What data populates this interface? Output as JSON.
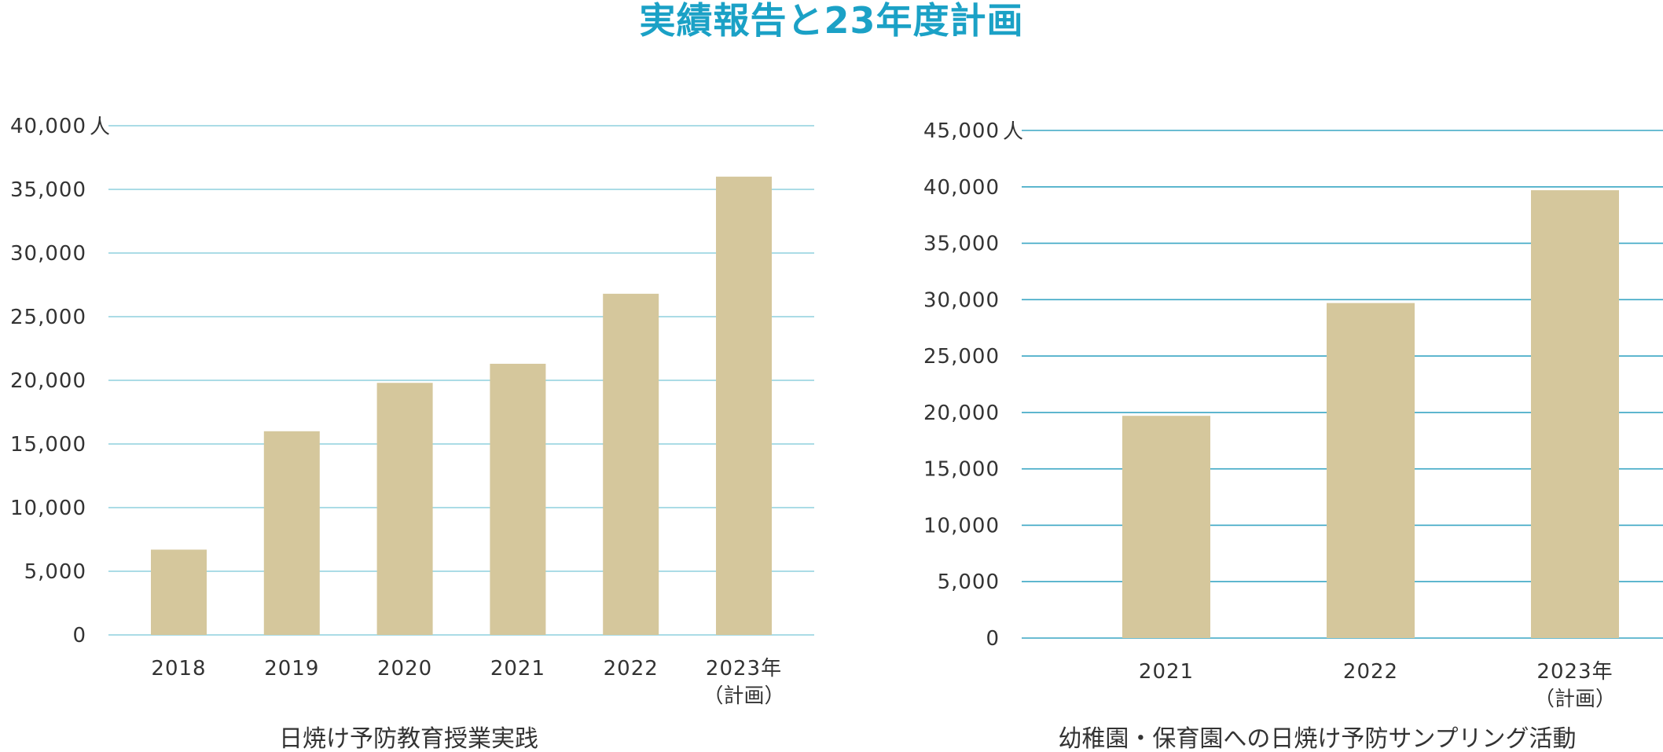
{
  "page": {
    "title": "実績報告と23年度計画",
    "title_color": "#1ba1c6"
  },
  "colors": {
    "bar": "#d5c79c",
    "left_gridline": "#8fd0dd",
    "right_gridline": "#3aa6c4",
    "text": "#333333"
  },
  "chart_data": [
    {
      "type": "bar",
      "title": "日焼け予防教育授業実践",
      "y_unit": "人",
      "categories": [
        "2018",
        "2019",
        "2020",
        "2021",
        "2022",
        "2023年"
      ],
      "category_sublabels": [
        "",
        "",
        "",
        "",
        "",
        "（計画）"
      ],
      "values": [
        6700,
        16000,
        19800,
        21300,
        26800,
        36000
      ],
      "yticks": [
        0,
        5000,
        10000,
        15000,
        20000,
        25000,
        30000,
        35000,
        40000
      ],
      "ytick_labels": [
        "0",
        "5,000",
        "10,000",
        "15,000",
        "20,000",
        "25,000",
        "30,000",
        "35,000",
        "40,000"
      ],
      "ylim": [
        0,
        40000
      ],
      "grid": true,
      "legend": "none"
    },
    {
      "type": "bar",
      "title": "幼稚園・保育園への日焼け予防サンプリング活動",
      "y_unit": "人",
      "categories": [
        "2021",
        "2022",
        "2023年"
      ],
      "category_sublabels": [
        "",
        "",
        "（計画）"
      ],
      "values": [
        19700,
        29700,
        39700
      ],
      "yticks": [
        0,
        5000,
        10000,
        15000,
        20000,
        25000,
        30000,
        35000,
        40000,
        45000
      ],
      "ytick_labels": [
        "0",
        "5,000",
        "10,000",
        "15,000",
        "20,000",
        "25,000",
        "30,000",
        "35,000",
        "40,000",
        "45,000"
      ],
      "ylim": [
        0,
        45000
      ],
      "grid": true,
      "legend": "none"
    }
  ]
}
